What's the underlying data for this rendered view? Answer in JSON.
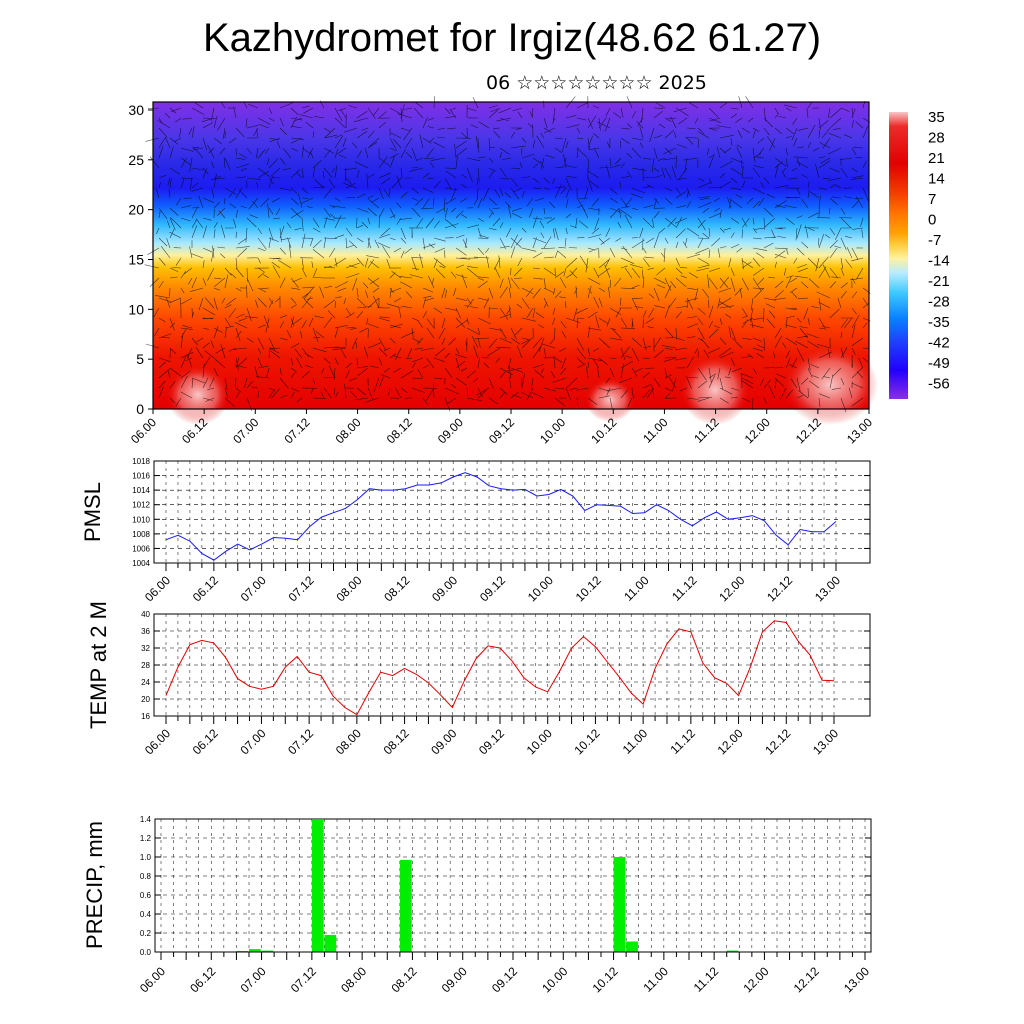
{
  "title": "Kazhydromet for Irgiz(48.62 61.27)",
  "subtitle": "06 ☆☆☆☆☆☆☆☆ 2025",
  "time_ticks": [
    "06.00",
    "06.12",
    "07.00",
    "07.12",
    "08.00",
    "08.12",
    "09.00",
    "09.12",
    "10.00",
    "10.12",
    "11.00",
    "11.12",
    "12.00",
    "12.12",
    "13.00"
  ],
  "chart_data": [
    {
      "type": "heatmap",
      "name": "cross-section",
      "y_ticks": [
        0,
        5,
        10,
        15,
        20,
        25,
        30
      ],
      "ylim": [
        0,
        30.8
      ],
      "colorbar": {
        "labels": [
          "35",
          "28",
          "21",
          "14",
          "7",
          "0",
          "-7",
          "-14",
          "-21",
          "-28",
          "-35",
          "-42",
          "-49",
          "-56"
        ],
        "colors": [
          "#f7c6c6",
          "#ee2a2a",
          "#e20000",
          "#f43b00",
          "#ff7a00",
          "#ffa000",
          "#ffd24a",
          "#fff2a0",
          "#b8ecff",
          "#40c8ff",
          "#0a80ff",
          "#1f40ff",
          "#2200ff",
          "#8a2ee6"
        ]
      }
    },
    {
      "type": "line",
      "name": "pmsl",
      "ylabel": "PMSL",
      "ylim": [
        1004,
        1018
      ],
      "y_ticks": [
        1004,
        1006,
        1008,
        1010,
        1012,
        1014,
        1016,
        1018
      ],
      "color": "#1a1aff",
      "values": [
        1007.2,
        1007.8,
        1007.0,
        1005.3,
        1004.4,
        1005.6,
        1006.6,
        1005.8,
        1006.6,
        1007.5,
        1007.4,
        1007.2,
        1009.0,
        1010.3,
        1010.9,
        1011.5,
        1012.7,
        1014.2,
        1014.0,
        1014.0,
        1014.2,
        1014.7,
        1014.7,
        1015.0,
        1015.8,
        1016.4,
        1015.8,
        1014.6,
        1014.2,
        1014.0,
        1014.1,
        1013.2,
        1013.4,
        1014.1,
        1013.2,
        1011.2,
        1012.0,
        1011.9,
        1011.8,
        1010.8,
        1010.9,
        1012.0,
        1011.2,
        1010.0,
        1009.1,
        1010.2,
        1011.0,
        1010.0,
        1010.2,
        1010.5,
        1009.8,
        1007.8,
        1006.5,
        1008.6,
        1008.3,
        1008.3,
        1009.7
      ]
    },
    {
      "type": "line",
      "name": "temp",
      "ylabel": "TEMP at 2 M",
      "ylim": [
        16,
        40
      ],
      "y_ticks": [
        16,
        20,
        24,
        28,
        32,
        36,
        40
      ],
      "color": "#e00000",
      "values": [
        20.8,
        27.5,
        32.8,
        33.8,
        33.2,
        29.8,
        24.8,
        23.0,
        22.3,
        23.0,
        27.5,
        30.0,
        26.3,
        25.5,
        20.7,
        18.0,
        16.3,
        21.5,
        26.3,
        25.5,
        27.2,
        25.8,
        23.8,
        21.0,
        18.0,
        24.2,
        29.5,
        32.5,
        32.0,
        29.0,
        25.0,
        22.8,
        21.7,
        26.5,
        32.0,
        34.7,
        32.3,
        28.7,
        25.2,
        21.4,
        18.8,
        27.2,
        33.0,
        36.5,
        35.8,
        28.5,
        25.0,
        23.7,
        20.8,
        27.6,
        35.8,
        38.4,
        38.0,
        33.6,
        30.3,
        24.4,
        24.3
      ]
    },
    {
      "type": "bar",
      "name": "precip",
      "ylabel": "PRECIP, mm",
      "ylim": [
        0,
        1.4
      ],
      "y_ticks": [
        "0.0",
        "0.2",
        "0.4",
        "0.6",
        "0.8",
        "1.0",
        "1.2",
        "1.4"
      ],
      "color": "#00ee00",
      "values": [
        0,
        0,
        0,
        0,
        0,
        0.005,
        0.01,
        0.03,
        0.015,
        0,
        0,
        0,
        1.39,
        0.18,
        0,
        0,
        0,
        0,
        0,
        0.97,
        0,
        0,
        0,
        0,
        0,
        0,
        0,
        0,
        0,
        0,
        0,
        0,
        0,
        0,
        0,
        0,
        1.0,
        0.11,
        0,
        0,
        0,
        0,
        0,
        0,
        0,
        0.015,
        0,
        0,
        0,
        0,
        0,
        0,
        0,
        0,
        0,
        0
      ]
    }
  ]
}
